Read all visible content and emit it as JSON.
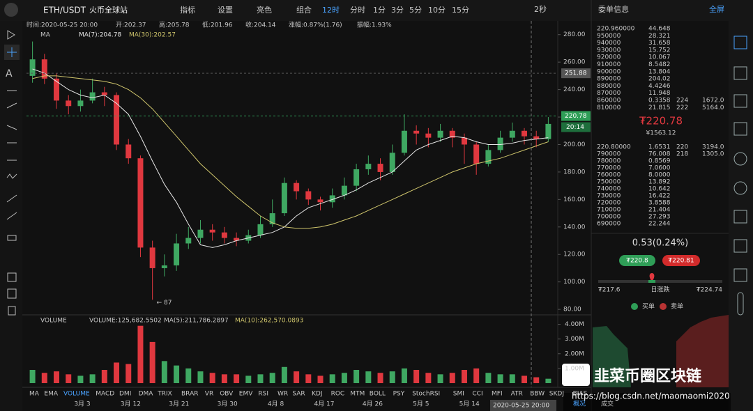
{
  "top_bar": {
    "symbol": "ETH/USDT",
    "exchange": "火币全球站",
    "menus": [
      "指标",
      "设置",
      "亮色",
      "组合"
    ],
    "intervals": [
      "12时",
      "分时",
      "1分",
      "3分",
      "5分",
      "10分",
      "15分"
    ],
    "refresh": "2秒"
  },
  "info_line": [
    "时间:2020-05-25 20:00",
    "开:202.37",
    "高:205.78",
    "低:201.96",
    "收:204.14",
    "涨幅:0.87%(1.76)",
    "振幅:1.93%"
  ],
  "chart_data": [
    {
      "type": "candlestick",
      "ma_label": "MA",
      "up_color": "#3fa862",
      "down_color": "#e0383f",
      "open": [
        250,
        262,
        248,
        232,
        228,
        232,
        238,
        236,
        200,
        190,
        125,
        110,
        112,
        128,
        132,
        138,
        136,
        132,
        130,
        134,
        142,
        150,
        172,
        166,
        160,
        158,
        163,
        170,
        182,
        186,
        180,
        194,
        210,
        208,
        205,
        210,
        205,
        200,
        186,
        196,
        205,
        210,
        206,
        204
      ],
      "high": [
        275,
        266,
        252,
        236,
        240,
        248,
        242,
        238,
        204,
        192,
        130,
        120,
        135,
        140,
        145,
        142,
        140,
        136,
        138,
        148,
        160,
        176,
        174,
        168,
        162,
        168,
        176,
        186,
        192,
        190,
        200,
        222,
        214,
        212,
        215,
        212,
        208,
        202,
        200,
        210,
        216,
        212,
        210,
        220
      ],
      "low": [
        245,
        244,
        226,
        222,
        224,
        230,
        228,
        196,
        186,
        118,
        87,
        104,
        108,
        124,
        128,
        130,
        128,
        126,
        128,
        132,
        140,
        148,
        160,
        156,
        152,
        154,
        160,
        166,
        178,
        174,
        178,
        192,
        200,
        198,
        202,
        198,
        186,
        178,
        184,
        194,
        202,
        200,
        198,
        202
      ],
      "close": [
        262,
        248,
        232,
        228,
        232,
        238,
        236,
        200,
        190,
        125,
        110,
        112,
        128,
        132,
        138,
        136,
        132,
        130,
        134,
        142,
        150,
        172,
        166,
        160,
        158,
        163,
        170,
        182,
        186,
        180,
        194,
        210,
        208,
        205,
        210,
        205,
        200,
        186,
        196,
        205,
        210,
        206,
        204,
        215
      ],
      "series": [
        {
          "name": "MA(7):204.78",
          "color": "#e6e6e6",
          "values": [
            255,
            252,
            246,
            240,
            236,
            234,
            236,
            230,
            222,
            206,
            188,
            171,
            158,
            142,
            127,
            125,
            127,
            130,
            132,
            134,
            136,
            140,
            148,
            154,
            157,
            160,
            163,
            167,
            172,
            176,
            180,
            188,
            196,
            200,
            203,
            206,
            205,
            202,
            200,
            200,
            201,
            203,
            204,
            205
          ]
        },
        {
          "name": "MA(30):202.57",
          "color": "#cfc56c",
          "values": [
            248,
            250,
            250,
            249,
            248,
            247,
            246,
            244,
            240,
            234,
            226,
            216,
            206,
            196,
            186,
            178,
            170,
            162,
            155,
            148,
            143,
            140,
            139,
            139,
            140,
            142,
            145,
            148,
            152,
            156,
            160,
            164,
            168,
            172,
            176,
            180,
            183,
            186,
            188,
            190,
            193,
            196,
            199,
            202
          ]
        }
      ],
      "ylim": [
        76,
        290
      ],
      "yticks": [
        {
          "value": 80,
          "label": "80.00"
        },
        {
          "value": 100,
          "label": "100.00"
        },
        {
          "value": 120,
          "label": "120.00"
        },
        {
          "value": 140,
          "label": "140.00"
        },
        {
          "value": 160,
          "label": "160.00"
        },
        {
          "value": 180,
          "label": "180.00"
        },
        {
          "value": 200,
          "label": "200.00"
        },
        {
          "value": 220,
          "label": "220.00"
        },
        {
          "value": 240,
          "label": "240.00"
        },
        {
          "value": 260,
          "label": "260.00"
        },
        {
          "value": 280,
          "label": "280.00"
        }
      ],
      "price_tags": [
        {
          "value": 251.88,
          "label": "251.88",
          "color": "#555555"
        },
        {
          "value": 220.78,
          "label": "220.78",
          "color": "#2f9e57"
        }
      ],
      "countdown": "20:14",
      "low_annotation": {
        "value": 87,
        "label": "← 87"
      },
      "x_labels": [
        "3月 3",
        "3月 12",
        "3月 21",
        "3月 30",
        "4月 8",
        "4月 17",
        "4月 26",
        "5月 5",
        "5月 14"
      ]
    },
    {
      "type": "bar",
      "title": "VOLUME",
      "legend": [
        "VOLUME:125,682.5502",
        "MA(5):211,786.2897",
        "MA(10):262,570.0893"
      ],
      "values": [
        900000,
        700000,
        800000,
        600000,
        500000,
        600000,
        900000,
        1400000,
        1300000,
        3900000,
        2800000,
        1500000,
        1200000,
        1000000,
        800000,
        700000,
        600000,
        600000,
        500000,
        600000,
        700000,
        1100000,
        800000,
        600000,
        500000,
        600000,
        700000,
        900000,
        800000,
        700000,
        800000,
        1000000,
        900000,
        700000,
        600000,
        700000,
        900000,
        1000000,
        700000,
        600000,
        600000,
        500000,
        400000,
        300000
      ],
      "ylim": [
        0,
        4500000
      ],
      "yticks": [
        {
          "value": 1000000,
          "label": "1.00M"
        },
        {
          "value": 2000000,
          "label": "2.00M"
        },
        {
          "value": 3000000,
          "label": "3.00M"
        },
        {
          "value": 4000000,
          "label": "4.00M"
        }
      ]
    }
  ],
  "indicator_tabs": [
    "MA",
    "EMA",
    "VOLUME",
    "MACD",
    "DMI",
    "DMA",
    "TRIX",
    "BRAR",
    "VR",
    "OBV",
    "EMV",
    "RSI",
    "WR",
    "SAR",
    "KDJ",
    "ROC",
    "MTM",
    "BOLL",
    "PSY",
    "StochRSI",
    "SMI",
    "CCI",
    "MFI",
    "ATR",
    "BBW",
    "SKDJ",
    "BIAS"
  ],
  "active_tab": "VOLUME",
  "order_book": {
    "title": "委单信息",
    "fullscreen": "全屏",
    "asks": [
      [
        "220.960000",
        "44.648"
      ],
      [
        "950000",
        "28.321"
      ],
      [
        "940000",
        "31.658"
      ],
      [
        "930000",
        "15.752"
      ],
      [
        "920000",
        "10.067"
      ],
      [
        "910000",
        "8.5482"
      ],
      [
        "900000",
        "13.804"
      ],
      [
        "890000",
        "204.02"
      ],
      [
        "880000",
        "4.4246"
      ],
      [
        "870000",
        "11.948"
      ],
      [
        "860000",
        "0.3358",
        "224",
        "1672.0"
      ],
      [
        "810000",
        "21.815",
        "222",
        "5164.0"
      ]
    ],
    "last_price": "₮220.78",
    "cny": "¥1563.12",
    "bids": [
      [
        "220.80000",
        "1.6531",
        "220",
        "3194.0"
      ],
      [
        "790000",
        "76.008",
        "218",
        "1305.0"
      ],
      [
        "780000",
        "0.8569"
      ],
      [
        "770000",
        "7.0600"
      ],
      [
        "760000",
        "8.0000"
      ],
      [
        "750000",
        "13.892"
      ],
      [
        "740000",
        "10.642"
      ],
      [
        "730000",
        "16.422"
      ],
      [
        "720000",
        "3.8588"
      ],
      [
        "710000",
        "21.404"
      ],
      [
        "700000",
        "27.293"
      ],
      [
        "690000",
        "22.244"
      ]
    ]
  },
  "stats": {
    "change": "0.53(0.24%)",
    "buy": "₮220.8",
    "sell": "₮220.81",
    "low": "₮217.6",
    "label": "日涨跌",
    "high": "₮224.74",
    "legend": [
      "买单",
      "卖单"
    ]
  },
  "footer": {
    "crosshair_date": "2020-05-25 20:00",
    "tabs": [
      "概况",
      "成交"
    ],
    "watermark": "韭菜币圈区块链",
    "url": "https://blog.csdn.net/maomaomi2020"
  }
}
